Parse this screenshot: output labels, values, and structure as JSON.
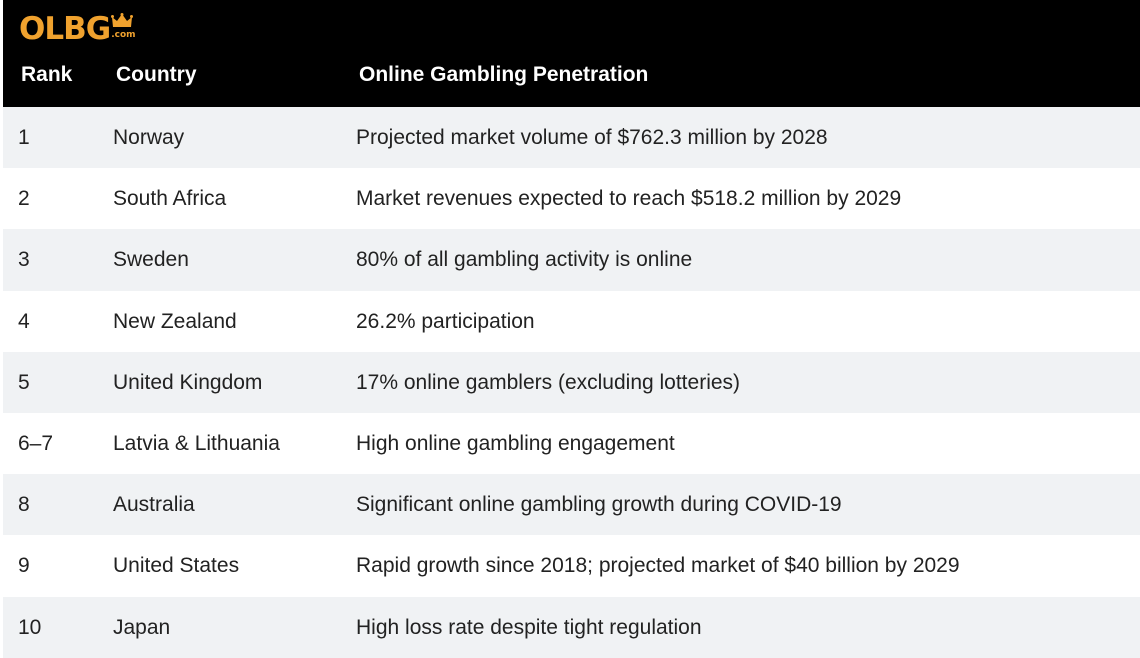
{
  "logo": {
    "text": "OLBG",
    "suffix": ".com",
    "icon": "crown-icon",
    "color": "#f0a22e"
  },
  "table": {
    "headers": {
      "rank": "Rank",
      "country": "Country",
      "penetration": "Online Gambling Penetration"
    },
    "rows": [
      {
        "rank": "1",
        "country": "Norway",
        "penetration": "Projected market volume of $762.3 million by 2028"
      },
      {
        "rank": "2",
        "country": "South Africa",
        "penetration": "Market revenues expected to reach $518.2 million by 2029"
      },
      {
        "rank": "3",
        "country": "Sweden",
        "penetration": "80% of all gambling activity is online"
      },
      {
        "rank": "4",
        "country": "New Zealand",
        "penetration": "26.2% participation"
      },
      {
        "rank": "5",
        "country": "United Kingdom",
        "penetration": "17% online gamblers (excluding lotteries)"
      },
      {
        "rank": "6–7",
        "country": "Latvia & Lithuania",
        "penetration": "High online gambling engagement"
      },
      {
        "rank": "8",
        "country": "Australia",
        "penetration": "Significant online gambling growth during COVID-19"
      },
      {
        "rank": "9",
        "country": "United States",
        "penetration": "Rapid growth since 2018; projected market of $40 billion by 2029"
      },
      {
        "rank": "10",
        "country": "Japan",
        "penetration": "High loss rate despite tight regulation"
      }
    ]
  },
  "colors": {
    "header_bg": "#000000",
    "header_text": "#ffffff",
    "row_alt_bg": "#f0f2f4",
    "row_bg": "#ffffff",
    "body_text": "#222222"
  }
}
